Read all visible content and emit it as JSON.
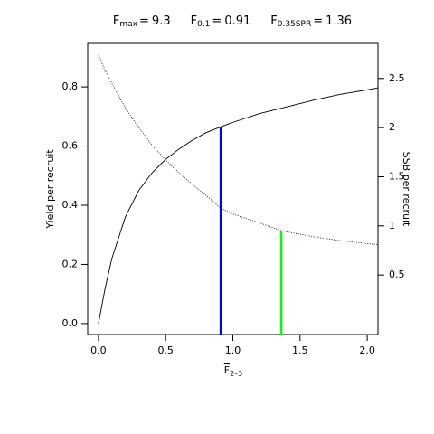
{
  "chart_data": {
    "type": "line",
    "title": [
      {
        "symbol": "F",
        "subscript": "max",
        "relation": "=",
        "value": 9.3
      },
      {
        "symbol": "F",
        "subscript": "0.1",
        "relation": "=",
        "value": 0.91
      },
      {
        "symbol": "F",
        "subscript": "0.35SPR",
        "relation": "=",
        "value": 1.36
      }
    ],
    "x_label": {
      "symbol": "F",
      "subscript": "2–3"
    },
    "y_label": "Yield per recruit",
    "y2_label": "SSB per recruit",
    "x": [
      0,
      0.05,
      0.1,
      0.2,
      0.3,
      0.4,
      0.5,
      0.6,
      0.7,
      0.8,
      0.91,
      1.0,
      1.2,
      1.36,
      1.6,
      1.8,
      2.0,
      2.08
    ],
    "series": [
      {
        "name": "Yield per recruit",
        "color": "#000000",
        "dash": "solid",
        "values": [
          0,
          0.12,
          0.22,
          0.36,
          0.45,
          0.51,
          0.555,
          0.59,
          0.62,
          0.645,
          0.665,
          0.68,
          0.71,
          0.728,
          0.755,
          0.775,
          0.79,
          0.797
        ]
      },
      {
        "name": "SSB per recruit",
        "color": "#000000",
        "dash": "dotted",
        "axis": "y2",
        "values": [
          2.74,
          2.58,
          2.45,
          2.2,
          2.0,
          1.82,
          1.67,
          1.54,
          1.42,
          1.31,
          1.18,
          1.12,
          1.03,
          0.95,
          0.89,
          0.85,
          0.82,
          0.81
        ]
      }
    ],
    "reference_lines": [
      {
        "x": 0.91,
        "top": 0.665,
        "color": "#0000ff"
      },
      {
        "x": 1.36,
        "top": 0.95,
        "axis": "y2",
        "color": "#00ff00"
      }
    ],
    "xlim": [
      -0.08,
      2.08
    ],
    "ylim": [
      -0.037,
      0.947
    ],
    "y2lim": [
      -0.106,
      2.857
    ],
    "xticks": [
      {
        "value": 0,
        "label": "0.0"
      },
      0.5,
      {
        "value": 1,
        "label": "1.0"
      },
      1.5,
      {
        "value": 2,
        "label": "2.0"
      }
    ],
    "yticks": [
      {
        "value": 0,
        "label": "0.0"
      },
      0.2,
      0.4,
      0.6,
      0.8
    ],
    "y2ticks": [
      0.5,
      1,
      1.5,
      2,
      2.5
    ]
  }
}
